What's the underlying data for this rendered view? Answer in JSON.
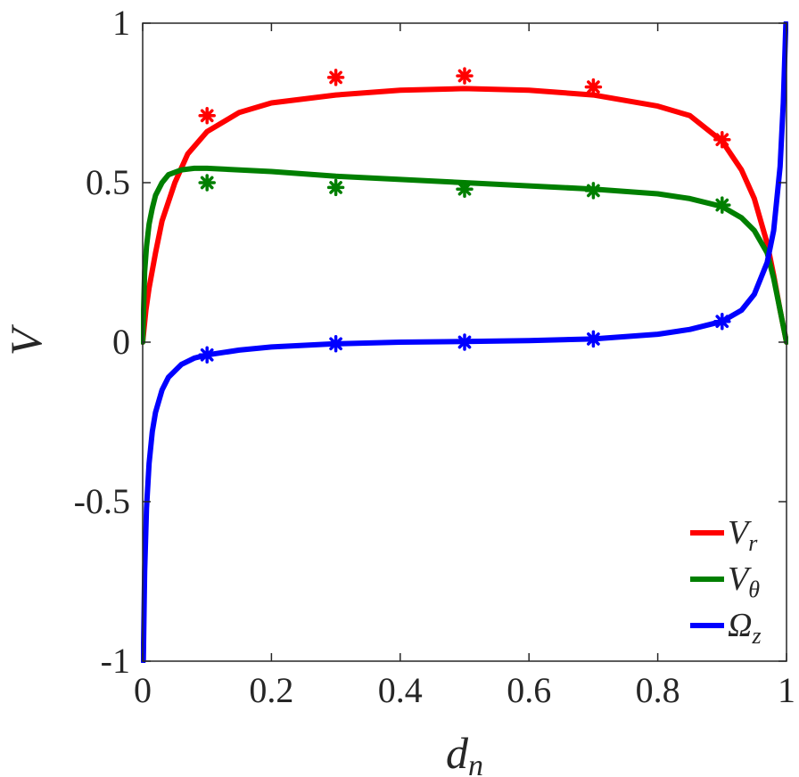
{
  "chart_data": {
    "type": "line",
    "xlabel": "d",
    "xlabel_sub": "n",
    "ylabel": "V",
    "xlim": [
      0,
      1
    ],
    "ylim": [
      -1,
      1
    ],
    "xticks": [
      0,
      0.2,
      0.4,
      0.6,
      0.8,
      1
    ],
    "xtick_labels": [
      "0",
      "0.2",
      "0.4",
      "0.6",
      "0.8",
      "1"
    ],
    "yticks": [
      -1,
      -0.5,
      0,
      0.5,
      1
    ],
    "ytick_labels": [
      "-1",
      "-0.5",
      "0",
      "0.5",
      "1"
    ],
    "grid": false,
    "legend_position": "bottom-right",
    "series": [
      {
        "name": "V",
        "name_sub": "r",
        "color": "#ff0000",
        "curve": {
          "x": [
            0,
            0.005,
            0.01,
            0.02,
            0.03,
            0.05,
            0.07,
            0.1,
            0.15,
            0.2,
            0.3,
            0.4,
            0.5,
            0.6,
            0.7,
            0.8,
            0.85,
            0.9,
            0.93,
            0.95,
            0.97,
            0.98,
            0.99,
            1
          ],
          "y": [
            0,
            0.1,
            0.17,
            0.28,
            0.38,
            0.5,
            0.59,
            0.66,
            0.72,
            0.75,
            0.775,
            0.79,
            0.795,
            0.79,
            0.775,
            0.74,
            0.71,
            0.63,
            0.54,
            0.45,
            0.31,
            0.21,
            0.1,
            0
          ]
        },
        "markers": {
          "x": [
            0.1,
            0.3,
            0.5,
            0.7,
            0.9
          ],
          "y": [
            0.71,
            0.83,
            0.835,
            0.8,
            0.635
          ]
        }
      },
      {
        "name": "V",
        "name_sub": "θ",
        "color": "#007f00",
        "curve": {
          "x": [
            0,
            0.003,
            0.006,
            0.01,
            0.015,
            0.02,
            0.03,
            0.04,
            0.06,
            0.08,
            0.1,
            0.2,
            0.3,
            0.4,
            0.5,
            0.6,
            0.7,
            0.8,
            0.85,
            0.9,
            0.93,
            0.95,
            0.97,
            0.98,
            0.99,
            1
          ],
          "y": [
            0,
            0.22,
            0.3,
            0.37,
            0.42,
            0.46,
            0.5,
            0.525,
            0.54,
            0.545,
            0.545,
            0.535,
            0.52,
            0.51,
            0.5,
            0.49,
            0.48,
            0.465,
            0.45,
            0.425,
            0.39,
            0.35,
            0.28,
            0.2,
            0.1,
            0
          ]
        },
        "markers": {
          "x": [
            0.1,
            0.3,
            0.5,
            0.7,
            0.9
          ],
          "y": [
            0.5,
            0.485,
            0.48,
            0.475,
            0.43
          ]
        }
      },
      {
        "name": "Ω",
        "name_sub": "z",
        "color": "#0000ff",
        "curve": {
          "x": [
            0.001,
            0.003,
            0.006,
            0.01,
            0.015,
            0.02,
            0.03,
            0.04,
            0.06,
            0.08,
            0.1,
            0.15,
            0.2,
            0.3,
            0.4,
            0.5,
            0.6,
            0.7,
            0.8,
            0.85,
            0.9,
            0.93,
            0.95,
            0.97,
            0.98,
            0.99,
            0.995,
            0.999
          ],
          "y": [
            -1.0,
            -0.72,
            -0.52,
            -0.38,
            -0.28,
            -0.22,
            -0.15,
            -0.11,
            -0.07,
            -0.05,
            -0.04,
            -0.025,
            -0.015,
            -0.005,
            0,
            0.002,
            0.005,
            0.01,
            0.025,
            0.04,
            0.065,
            0.1,
            0.15,
            0.25,
            0.35,
            0.55,
            0.75,
            1.0
          ]
        },
        "markers": {
          "x": [
            0.1,
            0.3,
            0.5,
            0.7,
            0.9
          ],
          "y": [
            -0.04,
            -0.005,
            0,
            0.01,
            0.065
          ]
        }
      }
    ]
  }
}
